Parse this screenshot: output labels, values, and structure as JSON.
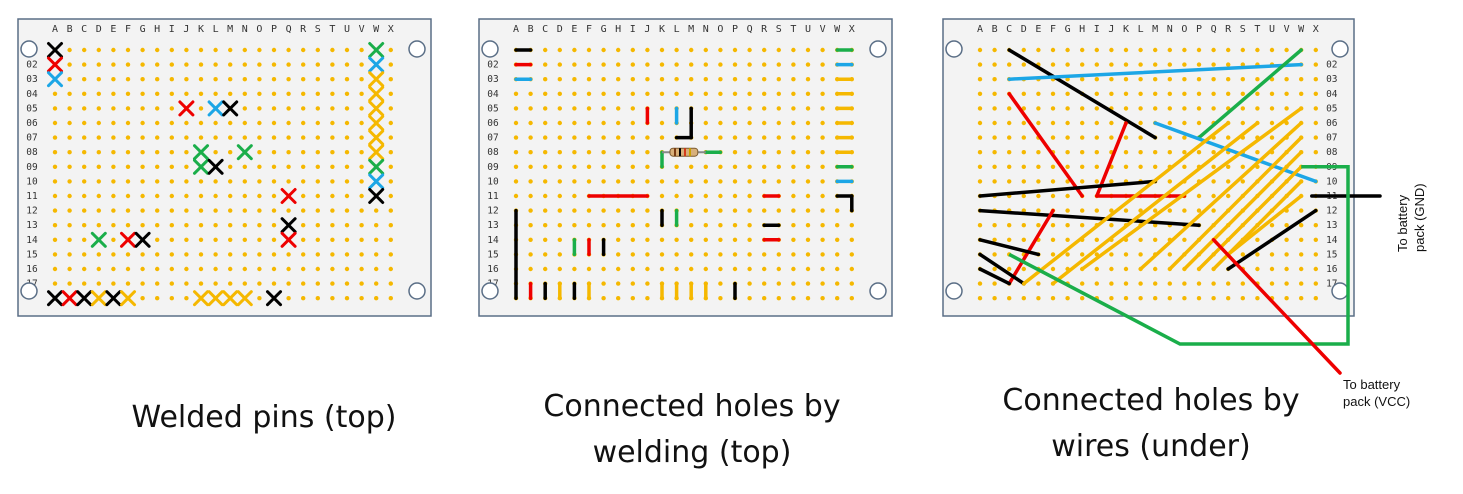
{
  "columns": [
    "A",
    "B",
    "C",
    "D",
    "E",
    "F",
    "G",
    "H",
    "I",
    "J",
    "K",
    "L",
    "M",
    "N",
    "O",
    "P",
    "Q",
    "R",
    "S",
    "T",
    "U",
    "V",
    "W",
    "X"
  ],
  "rows": [
    "02",
    "03",
    "04",
    "05",
    "06",
    "07",
    "08",
    "09",
    "10",
    "11",
    "12",
    "13",
    "14",
    "15",
    "16",
    "17"
  ],
  "colors": {
    "board": "#f3f3f3",
    "board_border": "#5a6e86",
    "hole": "#f5b800",
    "red": "#ee0000",
    "black": "#000000",
    "blue": "#1ca6e6",
    "green": "#1aae4a",
    "yellow": "#f5b800",
    "text": "#111111"
  },
  "panels": [
    {
      "id": "welded-pins",
      "caption": [
        "Welded pins (top)"
      ],
      "pins": [
        {
          "c": "A",
          "r": "01",
          "color": "black"
        },
        {
          "c": "A",
          "r": "02",
          "color": "red"
        },
        {
          "c": "A",
          "r": "03",
          "color": "blue"
        },
        {
          "c": "J",
          "r": "05",
          "color": "red"
        },
        {
          "c": "L",
          "r": "05",
          "color": "blue"
        },
        {
          "c": "M",
          "r": "05",
          "color": "black"
        },
        {
          "c": "K",
          "r": "08",
          "color": "green"
        },
        {
          "c": "N",
          "r": "08",
          "color": "green"
        },
        {
          "c": "K",
          "r": "09",
          "color": "green"
        },
        {
          "c": "L",
          "r": "09",
          "color": "black"
        },
        {
          "c": "W",
          "r": "01",
          "color": "green"
        },
        {
          "c": "W",
          "r": "02",
          "color": "blue"
        },
        {
          "c": "W",
          "r": "03",
          "color": "yellow"
        },
        {
          "c": "W",
          "r": "04",
          "color": "yellow"
        },
        {
          "c": "W",
          "r": "05",
          "color": "yellow"
        },
        {
          "c": "W",
          "r": "06",
          "color": "yellow"
        },
        {
          "c": "W",
          "r": "07",
          "color": "yellow"
        },
        {
          "c": "W",
          "r": "08",
          "color": "yellow"
        },
        {
          "c": "W",
          "r": "09",
          "color": "green"
        },
        {
          "c": "W",
          "r": "10",
          "color": "blue"
        },
        {
          "c": "W",
          "r": "11",
          "color": "black"
        },
        {
          "c": "Q",
          "r": "11",
          "color": "red"
        },
        {
          "c": "Q",
          "r": "13",
          "color": "black"
        },
        {
          "c": "Q",
          "r": "14",
          "color": "red"
        },
        {
          "c": "D",
          "r": "14",
          "color": "green"
        },
        {
          "c": "F",
          "r": "14",
          "color": "red"
        },
        {
          "c": "G",
          "r": "14",
          "color": "black"
        },
        {
          "c": "A",
          "r": "18",
          "color": "black"
        },
        {
          "c": "B",
          "r": "18",
          "color": "red"
        },
        {
          "c": "C",
          "r": "18",
          "color": "black"
        },
        {
          "c": "D",
          "r": "18",
          "color": "yellow"
        },
        {
          "c": "E",
          "r": "18",
          "color": "black"
        },
        {
          "c": "F",
          "r": "18",
          "color": "yellow"
        },
        {
          "c": "K",
          "r": "18",
          "color": "yellow"
        },
        {
          "c": "L",
          "r": "18",
          "color": "yellow"
        },
        {
          "c": "M",
          "r": "18",
          "color": "yellow"
        },
        {
          "c": "N",
          "r": "18",
          "color": "yellow"
        },
        {
          "c": "P",
          "r": "18",
          "color": "black"
        }
      ]
    },
    {
      "id": "connected-holes-welding",
      "caption": [
        "Connected holes by",
        "welding (top)"
      ],
      "segments": [
        {
          "c1": "A",
          "r1": "01",
          "c2": "B",
          "r2": "01",
          "color": "black"
        },
        {
          "c1": "A",
          "r1": "02",
          "c2": "B",
          "r2": "02",
          "color": "red"
        },
        {
          "c1": "A",
          "r1": "03",
          "c2": "B",
          "r2": "03",
          "color": "blue"
        },
        {
          "c1": "W",
          "r1": "01",
          "c2": "X",
          "r2": "01",
          "color": "green"
        },
        {
          "c1": "W",
          "r1": "02",
          "c2": "X",
          "r2": "02",
          "color": "blue"
        },
        {
          "c1": "W",
          "r1": "03",
          "c2": "X",
          "r2": "03",
          "color": "yellow"
        },
        {
          "c1": "W",
          "r1": "04",
          "c2": "X",
          "r2": "04",
          "color": "yellow"
        },
        {
          "c1": "W",
          "r1": "05",
          "c2": "X",
          "r2": "05",
          "color": "yellow"
        },
        {
          "c1": "W",
          "r1": "06",
          "c2": "X",
          "r2": "06",
          "color": "yellow"
        },
        {
          "c1": "W",
          "r1": "07",
          "c2": "X",
          "r2": "07",
          "color": "yellow"
        },
        {
          "c1": "W",
          "r1": "08",
          "c2": "X",
          "r2": "08",
          "color": "yellow"
        },
        {
          "c1": "W",
          "r1": "09",
          "c2": "X",
          "r2": "09",
          "color": "green"
        },
        {
          "c1": "W",
          "r1": "10",
          "c2": "X",
          "r2": "10",
          "color": "blue"
        },
        {
          "c1": "W",
          "r1": "11",
          "c2": "X",
          "r2": "11",
          "color": "black"
        },
        {
          "c1": "X",
          "r1": "11",
          "c2": "X",
          "r2": "12",
          "color": "black"
        },
        {
          "c1": "J",
          "r1": "05",
          "c2": "J",
          "r2": "06",
          "color": "red"
        },
        {
          "c1": "L",
          "r1": "05",
          "c2": "L",
          "r2": "06",
          "color": "blue"
        },
        {
          "c1": "M",
          "r1": "05",
          "c2": "M",
          "r2": "07",
          "color": "black"
        },
        {
          "c1": "L",
          "r1": "07",
          "c2": "M",
          "r2": "07",
          "color": "black"
        },
        {
          "c1": "K",
          "r1": "08",
          "c2": "K",
          "r2": "09",
          "color": "green"
        },
        {
          "c1": "N",
          "r1": "08",
          "c2": "O",
          "r2": "08",
          "color": "green"
        },
        {
          "c1": "F",
          "r1": "11",
          "c2": "J",
          "r2": "11",
          "color": "red"
        },
        {
          "c1": "R",
          "r1": "11",
          "c2": "S",
          "r2": "11",
          "color": "red"
        },
        {
          "c1": "R",
          "r1": "13",
          "c2": "S",
          "r2": "13",
          "color": "black"
        },
        {
          "c1": "R",
          "r1": "14",
          "c2": "S",
          "r2": "14",
          "color": "red"
        },
        {
          "c1": "K",
          "r1": "12",
          "c2": "K",
          "r2": "13",
          "color": "black"
        },
        {
          "c1": "L",
          "r1": "12",
          "c2": "L",
          "r2": "13",
          "color": "green"
        },
        {
          "c1": "E",
          "r1": "14",
          "c2": "E",
          "r2": "15",
          "color": "green"
        },
        {
          "c1": "F",
          "r1": "14",
          "c2": "F",
          "r2": "15",
          "color": "red"
        },
        {
          "c1": "G",
          "r1": "14",
          "c2": "G",
          "r2": "15",
          "color": "black"
        },
        {
          "c1": "A",
          "r1": "12",
          "c2": "A",
          "r2": "18",
          "color": "black"
        },
        {
          "c1": "B",
          "r1": "17",
          "c2": "B",
          "r2": "18",
          "color": "red"
        },
        {
          "c1": "C",
          "r1": "17",
          "c2": "C",
          "r2": "18",
          "color": "black"
        },
        {
          "c1": "D",
          "r1": "17",
          "c2": "D",
          "r2": "18",
          "color": "yellow"
        },
        {
          "c1": "E",
          "r1": "17",
          "c2": "E",
          "r2": "18",
          "color": "black"
        },
        {
          "c1": "F",
          "r1": "17",
          "c2": "F",
          "r2": "18",
          "color": "yellow"
        },
        {
          "c1": "K",
          "r1": "17",
          "c2": "K",
          "r2": "18",
          "color": "yellow"
        },
        {
          "c1": "L",
          "r1": "17",
          "c2": "L",
          "r2": "18",
          "color": "yellow"
        },
        {
          "c1": "M",
          "r1": "17",
          "c2": "M",
          "r2": "18",
          "color": "yellow"
        },
        {
          "c1": "N",
          "r1": "17",
          "c2": "N",
          "r2": "18",
          "color": "yellow"
        },
        {
          "c1": "P",
          "r1": "17",
          "c2": "P",
          "r2": "18",
          "color": "black"
        }
      ],
      "resistor": {
        "c1": "K",
        "r1": "08",
        "c2": "N",
        "r2": "08"
      }
    },
    {
      "id": "connected-holes-wires",
      "caption": [
        "Connected holes by",
        "wires (under)"
      ],
      "wires": [
        {
          "c1": "C",
          "r1": "01",
          "c2": "M",
          "r2": "07",
          "color": "black"
        },
        {
          "c1": "C",
          "r1": "03",
          "c2": "W",
          "r2": "02",
          "color": "blue"
        },
        {
          "c1": "C",
          "r1": "04",
          "c2": "H",
          "r2": "11",
          "color": "red"
        },
        {
          "c1": "P",
          "r1": "07",
          "c2": "W",
          "r2": "01",
          "color": "green"
        },
        {
          "c1": "M",
          "r1": "06",
          "c2": "X",
          "r2": "10",
          "color": "blue"
        },
        {
          "c1": "K",
          "r1": "06",
          "c2": "I",
          "r2": "11",
          "color": "red"
        },
        {
          "c1": "A",
          "r1": "11",
          "c2": "M",
          "r2": "10",
          "color": "black"
        },
        {
          "c1": "I",
          "r1": "11",
          "c2": "O",
          "r2": "11",
          "color": "red"
        },
        {
          "c1": "A",
          "r1": "12",
          "c2": "P",
          "r2": "13",
          "color": "black"
        },
        {
          "c1": "F",
          "r1": "12",
          "c2": "C",
          "r2": "17",
          "color": "red"
        },
        {
          "c1": "A",
          "r1": "14",
          "c2": "E",
          "r2": "15",
          "color": "black"
        },
        {
          "c1": "A",
          "r1": "15",
          "c2": "D",
          "r2": "17",
          "color": "black"
        },
        {
          "c1": "A",
          "r1": "16",
          "c2": "C",
          "r2": "17",
          "color": "black"
        },
        {
          "c1": "R",
          "r1": "16",
          "c2": "X",
          "r2": "12",
          "color": "black"
        },
        {
          "c1": "D",
          "r1": "17",
          "c2": "R",
          "r2": "06",
          "color": "yellow"
        },
        {
          "c1": "F",
          "r1": "17",
          "c2": "T",
          "r2": "06",
          "color": "yellow"
        },
        {
          "c1": "H",
          "r1": "16",
          "c2": "W",
          "r2": "05",
          "color": "yellow"
        },
        {
          "c1": "L",
          "r1": "16",
          "c2": "W",
          "r2": "06",
          "color": "yellow"
        },
        {
          "c1": "N",
          "r1": "16",
          "c2": "W",
          "r2": "07",
          "color": "yellow"
        },
        {
          "c1": "O",
          "r1": "16",
          "c2": "W",
          "r2": "08",
          "color": "yellow"
        },
        {
          "c1": "P",
          "r1": "16",
          "c2": "W",
          "r2": "09",
          "color": "yellow"
        },
        {
          "c1": "Q",
          "r1": "16",
          "c2": "W",
          "r2": "10",
          "color": "yellow"
        },
        {
          "c1": "R",
          "r1": "15",
          "c2": "W",
          "r2": "11",
          "color": "yellow"
        }
      ],
      "leads": [
        {
          "color": "black",
          "target": "gnd"
        },
        {
          "color": "green",
          "target": "loop"
        },
        {
          "color": "red",
          "target": "vcc"
        }
      ],
      "notes": {
        "gnd": [
          "To battery",
          "pack (GND)"
        ],
        "vcc": [
          "To battery",
          "pack (VCC)"
        ]
      }
    }
  ]
}
